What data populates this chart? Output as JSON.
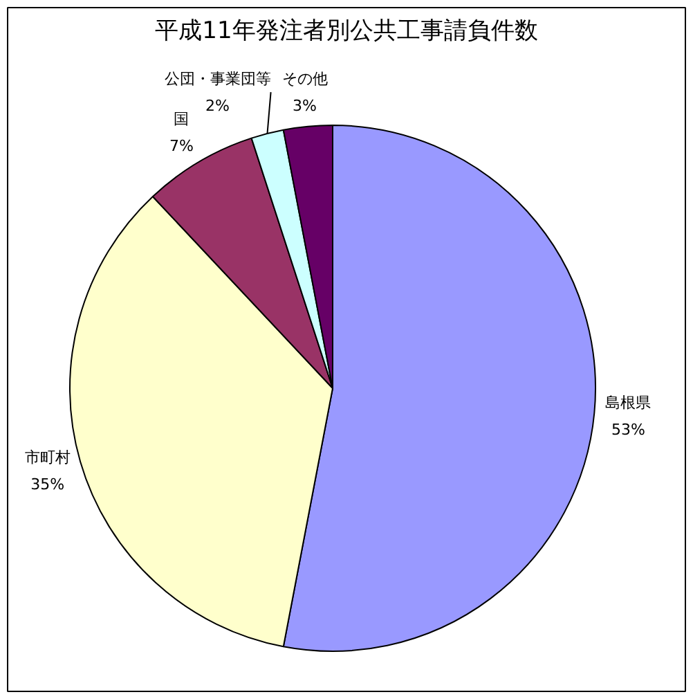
{
  "chart_data": {
    "type": "pie",
    "title": "平成11年発注者別公共工事請負件数",
    "categories": [
      "島根県",
      "市町村",
      "国",
      "公団・事業団等",
      "その他"
    ],
    "values": [
      53,
      35,
      7,
      2,
      3
    ],
    "colors": [
      "#9999ff",
      "#ffffcc",
      "#993366",
      "#ccffff",
      "#660066"
    ],
    "value_labels": [
      "53%",
      "35%",
      "7%",
      "2%",
      "3%"
    ]
  }
}
